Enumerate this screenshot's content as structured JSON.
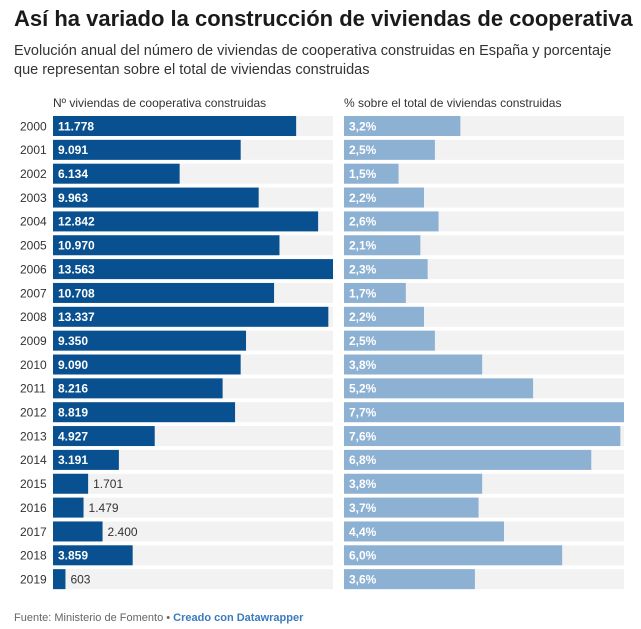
{
  "title": "Así ha variado la construcción de viviendas de cooperativa",
  "subtitle": "Evolución anual del número de viviendas de cooperativa construidas en España y porcentaje que representan sobre el total de viviendas construidas",
  "footer": {
    "source": "Fuente: Ministerio de Fomento",
    "separator": "•",
    "credit": "Creado con Datawrapper"
  },
  "colors": {
    "left_bar": "#08508f",
    "right_bar": "#8db1d3",
    "track": "#f2f2f2"
  },
  "chart_data": {
    "type": "bar",
    "orientation": "horizontal",
    "categories": [
      "2000",
      "2001",
      "2002",
      "2003",
      "2004",
      "2005",
      "2006",
      "2007",
      "2008",
      "2009",
      "2010",
      "2011",
      "2012",
      "2013",
      "2014",
      "2015",
      "2016",
      "2017",
      "2018",
      "2019"
    ],
    "series": [
      {
        "name": "Nº viviendas de cooperativa construidas",
        "values": [
          11778,
          9091,
          6134,
          9963,
          12842,
          10970,
          13563,
          10708,
          13337,
          9350,
          9090,
          8216,
          8819,
          4927,
          3191,
          1701,
          1479,
          2400,
          3859,
          603
        ],
        "labels": [
          "11.778",
          "9.091",
          "6.134",
          "9.963",
          "12.842",
          "10.970",
          "13.563",
          "10.708",
          "13.337",
          "9.350",
          "9.090",
          "8.216",
          "8.819",
          "4.927",
          "3.191",
          "1.701",
          "1.479",
          "2.400",
          "3.859",
          "603"
        ],
        "xlim": [
          0,
          13563
        ]
      },
      {
        "name": "% sobre el total de viviendas construidas",
        "values": [
          3.2,
          2.5,
          1.5,
          2.2,
          2.6,
          2.1,
          2.3,
          1.7,
          2.2,
          2.5,
          3.8,
          5.2,
          7.7,
          7.6,
          6.8,
          3.8,
          3.7,
          4.4,
          6.0,
          3.6
        ],
        "labels": [
          "3,2%",
          "2,5%",
          "1,5%",
          "2,2%",
          "2,6%",
          "2,1%",
          "2,3%",
          "1,7%",
          "2,2%",
          "2,5%",
          "3,8%",
          "5,2%",
          "7,7%",
          "7,6%",
          "6,8%",
          "3,8%",
          "3,7%",
          "4,4%",
          "6,0%",
          "3,6%"
        ],
        "xlim": [
          0,
          7.7
        ]
      }
    ]
  }
}
